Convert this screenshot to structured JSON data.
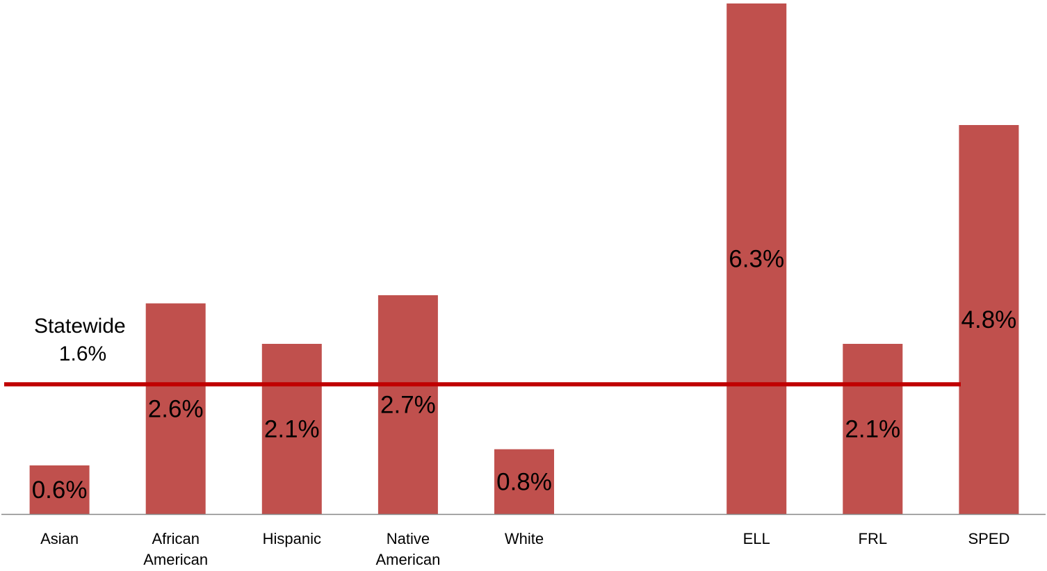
{
  "chart_data": {
    "type": "bar",
    "categories": [
      [
        "Asian"
      ],
      [
        "African",
        "American"
      ],
      [
        "Hispanic"
      ],
      [
        "Native",
        "American"
      ],
      [
        "White"
      ],
      [],
      [
        "ELL"
      ],
      [
        "FRL"
      ],
      [
        "SPED"
      ]
    ],
    "values": [
      0.6,
      2.6,
      2.1,
      2.7,
      0.8,
      null,
      6.3,
      2.1,
      4.8
    ],
    "value_labels": [
      "0.6%",
      "2.6%",
      "2.1%",
      "2.7%",
      "0.8%",
      "",
      "6.3%",
      "2.1%",
      "4.8%"
    ],
    "ylim": [
      0,
      6.3
    ],
    "reference_line": {
      "value": 1.6,
      "label_lines": [
        "Statewide",
        "1.6%"
      ],
      "color": "#c00000"
    },
    "bar_color": "#c0504d",
    "axis_color": "#868686",
    "grid": false,
    "legend": "none"
  }
}
